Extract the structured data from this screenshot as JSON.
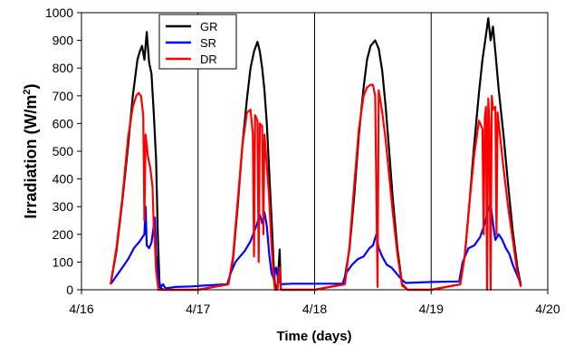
{
  "chart_data": {
    "type": "line",
    "xlabel": "Time (days)",
    "ylabel": "Irradiation (W/m²)",
    "ylabel_base": "Irradiation (W/m",
    "ylabel_sup": "2",
    "ylabel_close": ")",
    "xlim": [
      0,
      4
    ],
    "ylim": [
      0,
      1000
    ],
    "x_ticks": [
      0,
      1,
      2,
      3,
      4
    ],
    "x_tick_labels": [
      "4/16",
      "4/17",
      "4/18",
      "4/19",
      "4/20"
    ],
    "y_ticks": [
      0,
      100,
      200,
      300,
      400,
      500,
      600,
      700,
      800,
      900,
      1000
    ],
    "y_tick_labels": [
      "0",
      "100",
      "200",
      "300",
      "400",
      "500",
      "600",
      "700",
      "800",
      "900",
      "1000"
    ],
    "vertical_gridlines_at": [
      1,
      2,
      3
    ],
    "legend_position": "top-left",
    "series": [
      {
        "name": "GR",
        "color": "#000000",
        "points": [
          [
            0.25,
            20
          ],
          [
            0.3,
            140
          ],
          [
            0.35,
            320
          ],
          [
            0.4,
            520
          ],
          [
            0.44,
            700
          ],
          [
            0.48,
            830
          ],
          [
            0.5,
            860
          ],
          [
            0.52,
            880
          ],
          [
            0.54,
            830
          ],
          [
            0.56,
            930
          ],
          [
            0.58,
            820
          ],
          [
            0.6,
            780
          ],
          [
            0.62,
            640
          ],
          [
            0.64,
            470
          ],
          [
            0.655,
            200
          ],
          [
            0.67,
            10
          ],
          [
            0.7,
            0
          ],
          [
            0.8,
            0
          ],
          [
            1.0,
            0
          ],
          [
            1.26,
            20
          ],
          [
            1.3,
            110
          ],
          [
            1.34,
            300
          ],
          [
            1.38,
            520
          ],
          [
            1.42,
            690
          ],
          [
            1.45,
            800
          ],
          [
            1.48,
            860
          ],
          [
            1.51,
            895
          ],
          [
            1.53,
            860
          ],
          [
            1.55,
            800
          ],
          [
            1.57,
            720
          ],
          [
            1.59,
            600
          ],
          [
            1.61,
            430
          ],
          [
            1.63,
            260
          ],
          [
            1.65,
            80
          ],
          [
            1.66,
            20
          ],
          [
            1.68,
            0
          ],
          [
            1.7,
            145
          ],
          [
            1.71,
            0
          ],
          [
            1.75,
            0
          ],
          [
            2.0,
            0
          ],
          [
            2.25,
            20
          ],
          [
            2.3,
            150
          ],
          [
            2.34,
            340
          ],
          [
            2.38,
            560
          ],
          [
            2.42,
            730
          ],
          [
            2.45,
            830
          ],
          [
            2.48,
            880
          ],
          [
            2.52,
            900
          ],
          [
            2.55,
            870
          ],
          [
            2.58,
            790
          ],
          [
            2.61,
            660
          ],
          [
            2.64,
            500
          ],
          [
            2.67,
            330
          ],
          [
            2.71,
            150
          ],
          [
            2.75,
            20
          ],
          [
            2.8,
            0
          ],
          [
            3.0,
            0
          ],
          [
            3.25,
            20
          ],
          [
            3.29,
            130
          ],
          [
            3.33,
            320
          ],
          [
            3.37,
            530
          ],
          [
            3.41,
            710
          ],
          [
            3.44,
            830
          ],
          [
            3.47,
            920
          ],
          [
            3.49,
            980
          ],
          [
            3.51,
            900
          ],
          [
            3.53,
            950
          ],
          [
            3.55,
            860
          ],
          [
            3.58,
            720
          ],
          [
            3.62,
            560
          ],
          [
            3.66,
            380
          ],
          [
            3.7,
            210
          ],
          [
            3.74,
            80
          ],
          [
            3.77,
            15
          ]
        ]
      },
      {
        "name": "SR",
        "color": "#0000ff",
        "points": [
          [
            0.25,
            20
          ],
          [
            0.3,
            50
          ],
          [
            0.35,
            80
          ],
          [
            0.4,
            110
          ],
          [
            0.45,
            150
          ],
          [
            0.5,
            175
          ],
          [
            0.54,
            200
          ],
          [
            0.55,
            300
          ],
          [
            0.56,
            160
          ],
          [
            0.58,
            150
          ],
          [
            0.6,
            170
          ],
          [
            0.62,
            230
          ],
          [
            0.63,
            260
          ],
          [
            0.64,
            130
          ],
          [
            0.66,
            40
          ],
          [
            0.68,
            10
          ],
          [
            0.7,
            20
          ],
          [
            0.72,
            5
          ],
          [
            0.8,
            10
          ],
          [
            0.95,
            12
          ],
          [
            1.05,
            15
          ],
          [
            1.25,
            20
          ],
          [
            1.28,
            60
          ],
          [
            1.32,
            100
          ],
          [
            1.36,
            120
          ],
          [
            1.4,
            140
          ],
          [
            1.45,
            175
          ],
          [
            1.5,
            230
          ],
          [
            1.53,
            270
          ],
          [
            1.55,
            240
          ],
          [
            1.57,
            280
          ],
          [
            1.59,
            230
          ],
          [
            1.61,
            130
          ],
          [
            1.63,
            60
          ],
          [
            1.65,
            40
          ],
          [
            1.67,
            80
          ],
          [
            1.69,
            30
          ],
          [
            1.72,
            20
          ],
          [
            1.8,
            22
          ],
          [
            2.0,
            22
          ],
          [
            2.24,
            22
          ],
          [
            2.27,
            60
          ],
          [
            2.32,
            90
          ],
          [
            2.37,
            110
          ],
          [
            2.42,
            120
          ],
          [
            2.47,
            150
          ],
          [
            2.5,
            160
          ],
          [
            2.53,
            200
          ],
          [
            2.55,
            150
          ],
          [
            2.58,
            120
          ],
          [
            2.62,
            90
          ],
          [
            2.66,
            80
          ],
          [
            2.7,
            60
          ],
          [
            2.74,
            40
          ],
          [
            2.78,
            25
          ],
          [
            2.8,
            25
          ],
          [
            3.0,
            28
          ],
          [
            3.24,
            30
          ],
          [
            3.27,
            100
          ],
          [
            3.32,
            150
          ],
          [
            3.37,
            160
          ],
          [
            3.42,
            190
          ],
          [
            3.46,
            240
          ],
          [
            3.49,
            290
          ],
          [
            3.51,
            310
          ],
          [
            3.53,
            240
          ],
          [
            3.55,
            180
          ],
          [
            3.58,
            200
          ],
          [
            3.61,
            180
          ],
          [
            3.64,
            150
          ],
          [
            3.67,
            130
          ],
          [
            3.7,
            90
          ],
          [
            3.74,
            50
          ],
          [
            3.77,
            20
          ]
        ]
      },
      {
        "name": "DR",
        "color": "#ff0000",
        "points": [
          [
            0.25,
            20
          ],
          [
            0.3,
            150
          ],
          [
            0.35,
            330
          ],
          [
            0.4,
            550
          ],
          [
            0.44,
            660
          ],
          [
            0.47,
            700
          ],
          [
            0.49,
            710
          ],
          [
            0.51,
            700
          ],
          [
            0.53,
            630
          ],
          [
            0.54,
            250
          ],
          [
            0.55,
            560
          ],
          [
            0.57,
            480
          ],
          [
            0.59,
            440
          ],
          [
            0.61,
            370
          ],
          [
            0.62,
            230
          ],
          [
            0.63,
            170
          ],
          [
            0.64,
            70
          ],
          [
            0.66,
            0
          ],
          [
            0.7,
            0
          ],
          [
            0.8,
            0
          ],
          [
            1.0,
            0
          ],
          [
            1.26,
            20
          ],
          [
            1.3,
            120
          ],
          [
            1.34,
            320
          ],
          [
            1.38,
            520
          ],
          [
            1.42,
            640
          ],
          [
            1.45,
            650
          ],
          [
            1.47,
            560
          ],
          [
            1.48,
            120
          ],
          [
            1.49,
            630
          ],
          [
            1.51,
            610
          ],
          [
            1.52,
            100
          ],
          [
            1.53,
            600
          ],
          [
            1.55,
            590
          ],
          [
            1.56,
            200
          ],
          [
            1.57,
            560
          ],
          [
            1.59,
            450
          ],
          [
            1.61,
            330
          ],
          [
            1.63,
            160
          ],
          [
            1.65,
            40
          ],
          [
            1.66,
            0
          ],
          [
            1.68,
            0
          ],
          [
            1.7,
            80
          ],
          [
            1.71,
            0
          ],
          [
            1.75,
            0
          ],
          [
            2.0,
            0
          ],
          [
            2.26,
            20
          ],
          [
            2.3,
            160
          ],
          [
            2.34,
            380
          ],
          [
            2.38,
            580
          ],
          [
            2.42,
            700
          ],
          [
            2.45,
            730
          ],
          [
            2.48,
            740
          ],
          [
            2.5,
            740
          ],
          [
            2.52,
            700
          ],
          [
            2.54,
            10
          ],
          [
            2.55,
            720
          ],
          [
            2.58,
            640
          ],
          [
            2.61,
            540
          ],
          [
            2.64,
            410
          ],
          [
            2.67,
            280
          ],
          [
            2.71,
            130
          ],
          [
            2.75,
            15
          ],
          [
            2.8,
            0
          ],
          [
            3.0,
            0
          ],
          [
            3.25,
            20
          ],
          [
            3.29,
            130
          ],
          [
            3.33,
            320
          ],
          [
            3.37,
            490
          ],
          [
            3.41,
            610
          ],
          [
            3.44,
            580
          ],
          [
            3.45,
            200
          ],
          [
            3.46,
            620
          ],
          [
            3.47,
            660
          ],
          [
            3.48,
            0
          ],
          [
            3.49,
            690
          ],
          [
            3.5,
            600
          ],
          [
            3.51,
            0
          ],
          [
            3.52,
            700
          ],
          [
            3.53,
            650
          ],
          [
            3.55,
            660
          ],
          [
            3.56,
            200
          ],
          [
            3.57,
            640
          ],
          [
            3.59,
            560
          ],
          [
            3.62,
            440
          ],
          [
            3.66,
            300
          ],
          [
            3.7,
            180
          ],
          [
            3.74,
            60
          ],
          [
            3.77,
            10
          ]
        ]
      }
    ]
  }
}
